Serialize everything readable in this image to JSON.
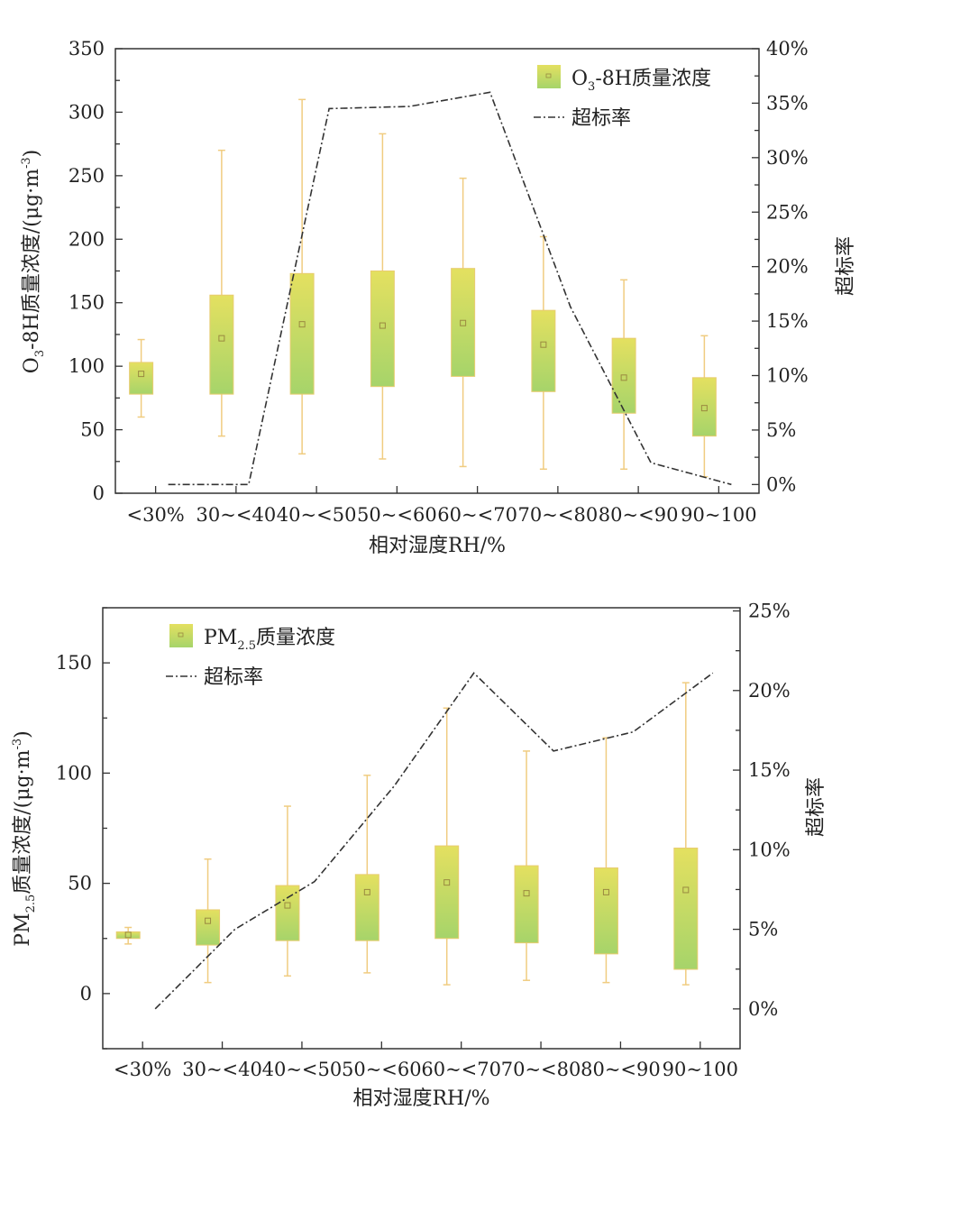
{
  "chart_data": [
    {
      "type": "box+line",
      "categories": [
        "<30%",
        "30~<40",
        "40~<50",
        "50~<60",
        "60~<70",
        "70~<80",
        "80~<90",
        "90~100"
      ],
      "xlabel": "相对湿度RH/%",
      "ylabel_parts": [
        "O",
        "3",
        "-8H质量浓度/(μg·m",
        "-3",
        ")"
      ],
      "y2label": "超标率",
      "ylim": [
        0,
        350
      ],
      "yticks": [
        0,
        50,
        100,
        150,
        200,
        250,
        300,
        350
      ],
      "y2lim": [
        -0.8,
        40
      ],
      "y2ticks": [
        0,
        5,
        10,
        15,
        20,
        25,
        30,
        35,
        40
      ],
      "y2tick_labels": [
        "0%",
        "5%",
        "10%",
        "15%",
        "20%",
        "25%",
        "30%",
        "35%",
        "40%"
      ],
      "legend": {
        "box_parts": [
          "O",
          "3",
          "-8H质量浓度"
        ],
        "line": "超标率",
        "placement": "top-right"
      },
      "boxes": [
        {
          "min": 60,
          "q1": 78,
          "q3": 103,
          "max": 121,
          "mean": 94
        },
        {
          "min": 45,
          "q1": 78,
          "q3": 156,
          "max": 270,
          "mean": 122
        },
        {
          "min": 31,
          "q1": 78,
          "q3": 173,
          "max": 310,
          "mean": 133
        },
        {
          "min": 27,
          "q1": 84,
          "q3": 175,
          "max": 283,
          "mean": 132
        },
        {
          "min": 21,
          "q1": 92,
          "q3": 177,
          "max": 248,
          "mean": 134
        },
        {
          "min": 19,
          "q1": 80,
          "q3": 144,
          "max": 202,
          "mean": 117
        },
        {
          "min": 19,
          "q1": 63,
          "q3": 122,
          "max": 168,
          "mean": 91
        },
        {
          "min": 13,
          "q1": 45,
          "q3": 91,
          "max": 124,
          "mean": 67
        }
      ],
      "exceedance_rate": [
        0,
        0,
        34.5,
        34.7,
        36.0,
        16.3,
        2.0,
        0
      ]
    },
    {
      "type": "box+line",
      "categories": [
        "<30%",
        "30~<40",
        "40~<50",
        "50~<60",
        "60~<70",
        "70~<80",
        "80~<90",
        "90~100"
      ],
      "xlabel": "相对湿度RH/%",
      "ylabel_parts": [
        "PM",
        "2.5",
        "质量浓度/(μg·m",
        "-3",
        ")"
      ],
      "y2label": "超标率",
      "ylim": [
        -25,
        175
      ],
      "yticks": [
        0,
        50,
        100,
        150
      ],
      "y2lim": [
        -2.5,
        25.2
      ],
      "y2ticks": [
        0,
        5,
        10,
        15,
        20,
        25
      ],
      "y2tick_labels": [
        "0%",
        "5%",
        "10%",
        "15%",
        "20%",
        "25%"
      ],
      "legend": {
        "box_parts": [
          "PM",
          "2.5",
          "质量浓度"
        ],
        "line": "超标率",
        "placement": "top-left"
      },
      "boxes": [
        {
          "min": 22.5,
          "q1": 25,
          "q3": 28,
          "max": 30,
          "mean": 26.6
        },
        {
          "min": 5,
          "q1": 22,
          "q3": 38,
          "max": 61,
          "mean": 33
        },
        {
          "min": 8,
          "q1": 24,
          "q3": 49,
          "max": 85,
          "mean": 40
        },
        {
          "min": 9.4,
          "q1": 24,
          "q3": 54,
          "max": 99,
          "mean": 46
        },
        {
          "min": 4,
          "q1": 25,
          "q3": 67,
          "max": 129.5,
          "mean": 50.4
        },
        {
          "min": 6,
          "q1": 23,
          "q3": 58,
          "max": 110,
          "mean": 45.5
        },
        {
          "min": 5,
          "q1": 18,
          "q3": 57,
          "max": 116,
          "mean": 46
        },
        {
          "min": 4,
          "q1": 11,
          "q3": 66,
          "max": 141,
          "mean": 47
        }
      ],
      "exceedance_rate": [
        0,
        5.0,
        8.0,
        14.0,
        21.1,
        16.2,
        17.4,
        21.1
      ]
    }
  ],
  "colors": {
    "box_top": "#e4e060",
    "box_bottom": "#a6d46a",
    "whisker": "#f0cc80",
    "line": "#333333",
    "mean_marker": "#9a8a40"
  }
}
